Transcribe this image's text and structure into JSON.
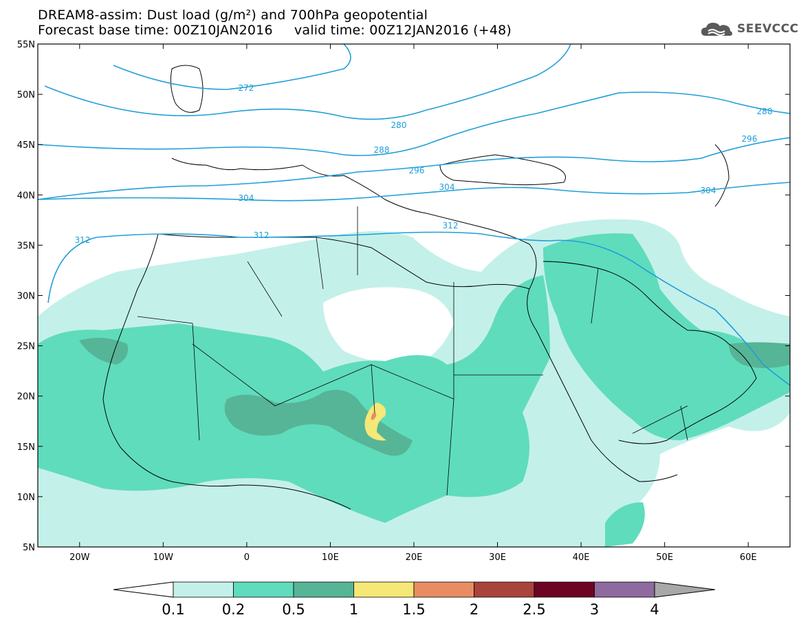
{
  "title": {
    "line1": "DREAM8-assim: Dust load (g/m²) and 700hPa geopotential",
    "line2": "Forecast base time: 00Z10JAN2016     valid time: 00Z12JAN2016 (+48)"
  },
  "logo": {
    "text": "SEEVCCC",
    "icon": "cloud-logo-icon"
  },
  "map": {
    "lon_range": [
      -25,
      65
    ],
    "lat_range": [
      5,
      55
    ],
    "lat_labels": [
      "55N",
      "50N",
      "45N",
      "40N",
      "35N",
      "30N",
      "25N",
      "20N",
      "15N",
      "10N",
      "5N"
    ],
    "lon_labels": [
      "20W",
      "10W",
      "0",
      "10E",
      "20E",
      "30E",
      "40E",
      "50E",
      "60E"
    ]
  },
  "geopotential_labels": [
    "272",
    "280",
    "288",
    "296",
    "304",
    "304",
    "312",
    "312",
    "312",
    "296",
    "304",
    "288"
  ],
  "colorbar": {
    "labels": [
      "0.1",
      "0.2",
      "0.5",
      "1",
      "1.5",
      "2",
      "2.5",
      "3",
      "4"
    ],
    "colors": [
      "#ffffff",
      "#c4f0ea",
      "#5fdcbc",
      "#56b596",
      "#f5e877",
      "#e98c63",
      "#a8443b",
      "#6e0424",
      "#8e6a9e",
      "#a8a8a8"
    ]
  },
  "colors": {
    "contour": "#1f9ed8",
    "dust_low": "#c4f0ea",
    "dust_mid": "#5fdcbc",
    "dust_high": "#56b596",
    "dust_peak": "#f5e877"
  }
}
